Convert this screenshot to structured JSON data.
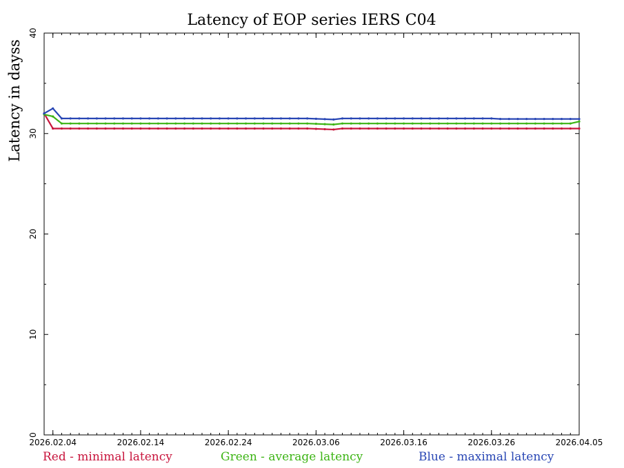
{
  "chart_data": {
    "type": "line",
    "title": "Latency of EOP  series IERS C04",
    "xlabel": "",
    "ylabel": "Latency in dayss",
    "ylim": [
      0,
      40
    ],
    "yticks": [
      0,
      10,
      20,
      30,
      40
    ],
    "x_range": [
      "2026-02-03",
      "2026-04-05"
    ],
    "xticks": [
      {
        "date": "2026-02-04",
        "label": "2026.02.04"
      },
      {
        "date": "2026-02-14",
        "label": "2026.02.14"
      },
      {
        "date": "2026-02-24",
        "label": "2026.02.24"
      },
      {
        "date": "2026-03-06",
        "label": "2026.03.06"
      },
      {
        "date": "2026-03-16",
        "label": "2026.03.16"
      },
      {
        "date": "2026-03-26",
        "label": "2026.03.26"
      },
      {
        "date": "2026-04-05",
        "label": "2026.04.05"
      }
    ],
    "grid": false,
    "series": [
      {
        "name": "Red - minimal latency",
        "color": "#c8143c",
        "points": [
          [
            "2026-02-03",
            32.0
          ],
          [
            "2026-02-04",
            30.5
          ],
          [
            "2026-02-05",
            30.5
          ],
          [
            "2026-03-05",
            30.5
          ],
          [
            "2026-03-08",
            30.4
          ],
          [
            "2026-03-09",
            30.5
          ],
          [
            "2026-03-26",
            30.5
          ],
          [
            "2026-04-05",
            30.5
          ]
        ]
      },
      {
        "name": "Green - average latency",
        "color": "#3cb414",
        "points": [
          [
            "2026-02-03",
            31.9
          ],
          [
            "2026-02-04",
            31.7
          ],
          [
            "2026-02-05",
            31.0
          ],
          [
            "2026-03-05",
            31.0
          ],
          [
            "2026-03-08",
            30.9
          ],
          [
            "2026-03-09",
            31.0
          ],
          [
            "2026-03-26",
            31.0
          ],
          [
            "2026-04-04",
            31.0
          ],
          [
            "2026-04-05",
            31.2
          ]
        ]
      },
      {
        "name": "Blue - maximal latency",
        "color": "#2846b4",
        "points": [
          [
            "2026-02-03",
            32.0
          ],
          [
            "2026-02-04",
            32.5
          ],
          [
            "2026-02-05",
            31.5
          ],
          [
            "2026-03-05",
            31.5
          ],
          [
            "2026-03-08",
            31.4
          ],
          [
            "2026-03-09",
            31.5
          ],
          [
            "2026-03-26",
            31.5
          ],
          [
            "2026-03-27",
            31.45
          ],
          [
            "2026-04-05",
            31.45
          ]
        ]
      }
    ]
  },
  "legend": {
    "red_label": "Red - minimal latency",
    "green_label": "Green - average latency",
    "blue_label": "Blue - maximal latency"
  }
}
